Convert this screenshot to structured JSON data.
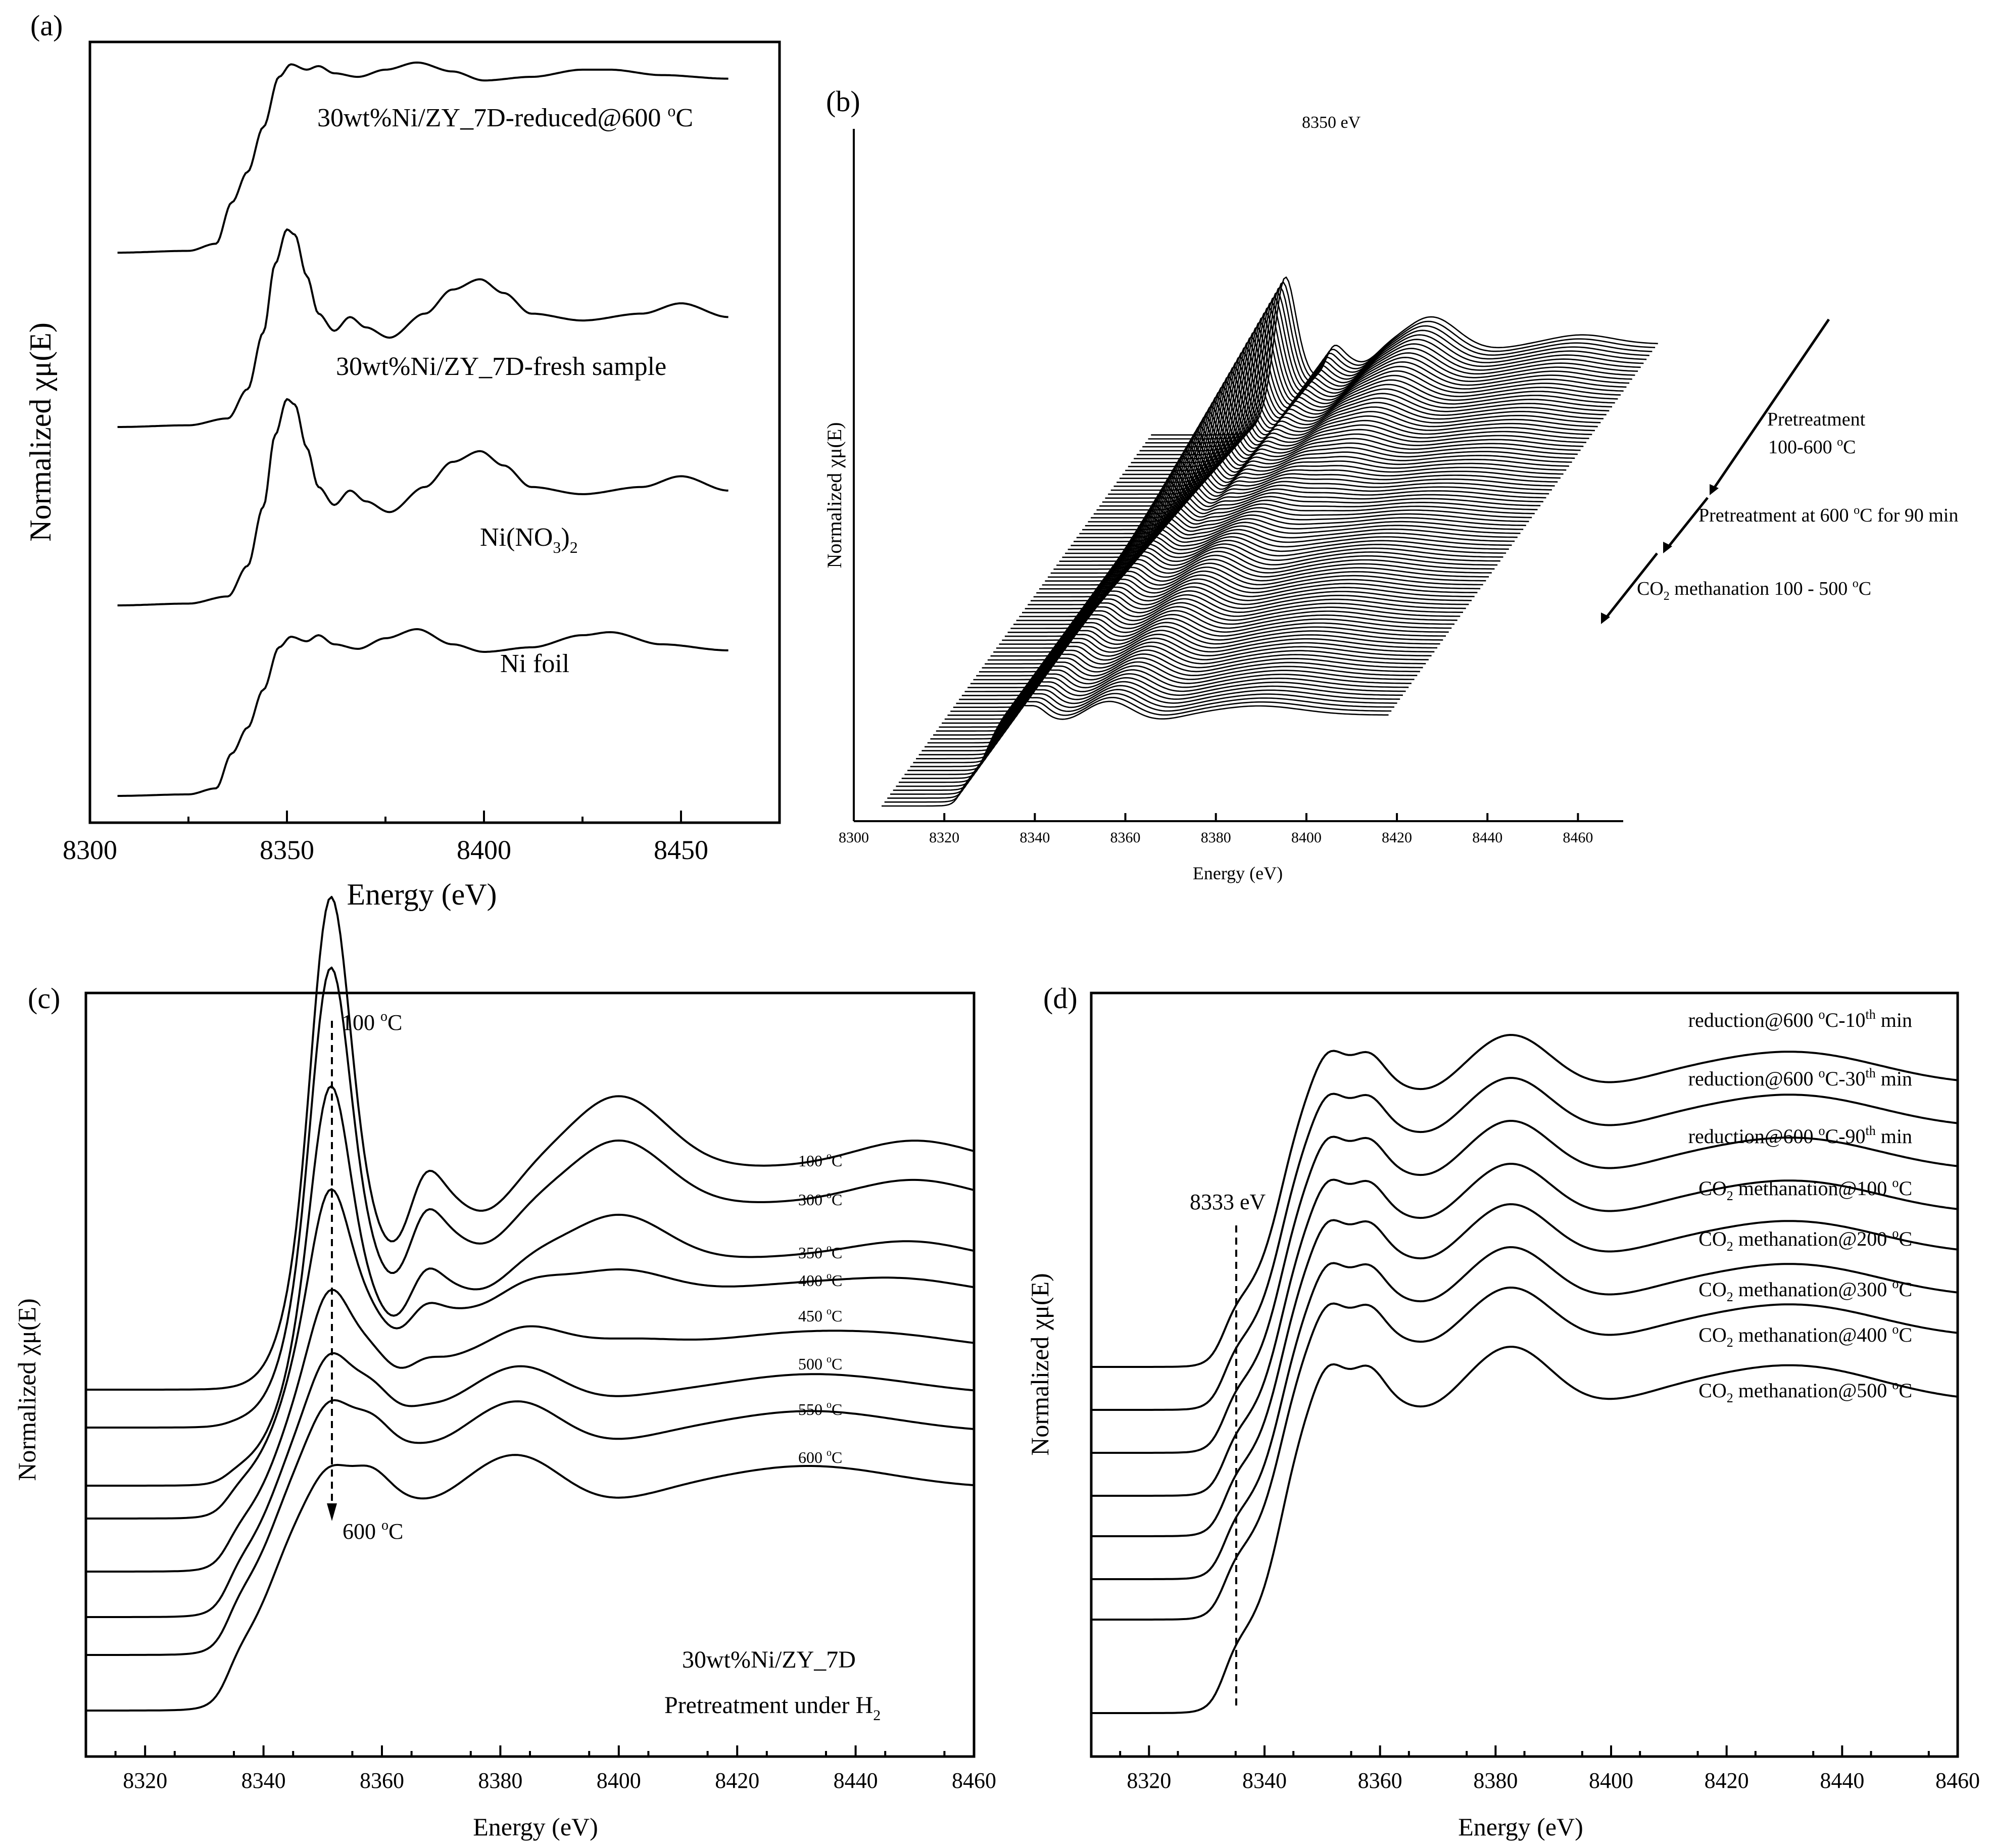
{
  "colors": {
    "ink": "#000000",
    "background": "#ffffff"
  },
  "chart_data": [
    {
      "panel": "(a)",
      "type": "line",
      "xlabel": "Energy (eV)",
      "ylabel": "Normalized χμ(E)",
      "xlim": [
        8300,
        8475
      ],
      "xticks": [
        8300,
        8350,
        8400,
        8450
      ],
      "series": [
        {
          "name": "30wt%Ni/ZY_7D-reduced@600 oC",
          "label_main": "30wt%Ni/ZY_7D-reduced@600 ",
          "label_sup": "o",
          "label_tail": "C",
          "x": [
            8307,
            8325,
            8332,
            8336,
            8340,
            8344,
            8348,
            8351,
            8355,
            8358,
            8362,
            8368,
            8375,
            8383,
            8392,
            8400,
            8412,
            8425,
            8432,
            8445,
            8462
          ],
          "y": [
            0.0,
            0.01,
            0.05,
            0.28,
            0.45,
            0.7,
            0.98,
            1.05,
            1.02,
            1.04,
            1.0,
            0.98,
            1.02,
            1.06,
            1.01,
            0.96,
            0.98,
            1.02,
            1.02,
            0.99,
            0.97
          ]
        },
        {
          "name": "30wt%Ni/ZY_7D-fresh sample",
          "x": [
            8307,
            8325,
            8335,
            8340,
            8344,
            8347,
            8350,
            8352,
            8355,
            8358,
            8362,
            8366,
            8370,
            8376,
            8385,
            8392,
            8399,
            8405,
            8412,
            8425,
            8440,
            8450,
            8462
          ],
          "y": [
            0.0,
            0.01,
            0.05,
            0.22,
            0.55,
            0.95,
            1.15,
            1.12,
            0.88,
            0.66,
            0.56,
            0.64,
            0.58,
            0.52,
            0.66,
            0.8,
            0.86,
            0.78,
            0.66,
            0.62,
            0.66,
            0.72,
            0.64
          ]
        },
        {
          "name": "Ni(NO3)2",
          "label_main": "Ni(NO",
          "label_sub": "3",
          "label_tail": ")",
          "label_sub2": "2",
          "x": [
            8307,
            8325,
            8335,
            8340,
            8344,
            8347,
            8350,
            8352,
            8355,
            8358,
            8362,
            8366,
            8370,
            8376,
            8385,
            8392,
            8399,
            8405,
            8412,
            8425,
            8440,
            8450,
            8462
          ],
          "y": [
            0.0,
            0.01,
            0.05,
            0.22,
            0.55,
            0.95,
            1.15,
            1.12,
            0.88,
            0.66,
            0.56,
            0.64,
            0.58,
            0.52,
            0.66,
            0.8,
            0.86,
            0.78,
            0.66,
            0.62,
            0.66,
            0.72,
            0.64
          ]
        },
        {
          "name": "Ni foil",
          "x": [
            8307,
            8325,
            8332,
            8336,
            8340,
            8344,
            8348,
            8351,
            8355,
            8358,
            8362,
            8368,
            8375,
            8383,
            8392,
            8400,
            8412,
            8425,
            8432,
            8445,
            8462
          ],
          "y": [
            0.0,
            0.01,
            0.05,
            0.28,
            0.45,
            0.7,
            0.98,
            1.05,
            1.02,
            1.06,
            1.0,
            0.97,
            1.04,
            1.1,
            1.0,
            0.95,
            0.98,
            1.06,
            1.08,
            1.0,
            0.96
          ]
        }
      ]
    },
    {
      "panel": "(b)",
      "type": "line",
      "xlabel": "Energy (eV)",
      "ylabel": "Normalized χμ(E)",
      "xlim": [
        8300,
        8470
      ],
      "xticks": [
        8300,
        8320,
        8340,
        8360,
        8380,
        8400,
        8420,
        8440,
        8460
      ],
      "peak_label": "8350 eV",
      "annotations": {
        "pretreatment_1": "Pretreatment",
        "pretreatment_2": "100-600 ",
        "pretreatment_2_sup": "o",
        "pretreatment_2_tail": "C",
        "hold_main": "Pretreatment at 600 ",
        "hold_sup": "o",
        "hold_tail": "C for 90 min",
        "methanation_co": "CO",
        "methanation_sub": "2",
        "methanation_tail": " methanation 100 - 500 ",
        "methanation_sup": "o",
        "methanation_end": "C"
      },
      "n_spectra": 95
    },
    {
      "panel": "(c)",
      "type": "line",
      "xlabel": "Energy (eV)",
      "ylabel": "Normalized χμ(E)",
      "xlim": [
        8310,
        8460
      ],
      "xticks": [
        8320,
        8340,
        8360,
        8380,
        8400,
        8420,
        8440,
        8460
      ],
      "sample_label": "30wt%Ni/ZY_7D",
      "condition_main": "Pretreatment under H",
      "condition_sub": "2",
      "arrow_top_main": "100 ",
      "arrow_top_sup": "o",
      "arrow_top_tail": "C",
      "arrow_bottom_main": "600 ",
      "arrow_bottom_sup": "o",
      "arrow_bottom_tail": "C",
      "series": [
        {
          "name": "100 oC",
          "main": "100 ",
          "sup": "o",
          "tail": "C",
          "white_line": 1.45,
          "oxide": 1.0
        },
        {
          "name": "300 oC",
          "main": "300 ",
          "sup": "o",
          "tail": "C",
          "white_line": 1.38,
          "oxide": 0.92
        },
        {
          "name": "350 oC",
          "main": "350 ",
          "sup": "o",
          "tail": "C",
          "white_line": 1.25,
          "oxide": 0.72
        },
        {
          "name": "400 oC",
          "main": "400 ",
          "sup": "o",
          "tail": "C",
          "white_line": 1.1,
          "oxide": 0.45
        },
        {
          "name": "450 oC",
          "main": "450 ",
          "sup": "o",
          "tail": "C",
          "white_line": 1.0,
          "oxide": 0.25
        },
        {
          "name": "500 oC",
          "main": "500 ",
          "sup": "o",
          "tail": "C",
          "white_line": 0.96,
          "oxide": 0.1
        },
        {
          "name": "550 oC",
          "main": "550 ",
          "sup": "o",
          "tail": "C",
          "white_line": 0.94,
          "oxide": 0.04
        },
        {
          "name": "600 oC",
          "main": "600 ",
          "sup": "o",
          "tail": "C",
          "white_line": 0.92,
          "oxide": 0.0
        }
      ]
    },
    {
      "panel": "(d)",
      "type": "line",
      "xlabel": "Energy (eV)",
      "ylabel": "Normalized χμ(E)",
      "xlim": [
        8310,
        8460
      ],
      "xticks": [
        8320,
        8340,
        8360,
        8380,
        8400,
        8420,
        8440,
        8460
      ],
      "edge_label": "8333 eV",
      "series": [
        {
          "name": "reduction@600 oC-10th min",
          "parts": [
            "reduction@600 ",
            "o",
            "C-10",
            "th",
            " min"
          ]
        },
        {
          "name": "reduction@600 oC-30th min",
          "parts": [
            "reduction@600 ",
            "o",
            "C-30",
            "th",
            " min"
          ]
        },
        {
          "name": "reduction@600 oC-90th min",
          "parts": [
            "reduction@600 ",
            "o",
            "C-90",
            "th",
            " min"
          ]
        },
        {
          "name": "CO2 methanation@100 oC",
          "parts": [
            "CO",
            "2",
            " methanation@100 ",
            "o",
            "C"
          ]
        },
        {
          "name": "CO2 methanation@200 oC",
          "parts": [
            "CO",
            "2",
            " methanation@200 ",
            "o",
            "C"
          ]
        },
        {
          "name": "CO2 methanation@300 oC",
          "parts": [
            "CO",
            "2",
            " methanation@300 ",
            "o",
            "C"
          ]
        },
        {
          "name": "CO2 methanation@400 oC",
          "parts": [
            "CO",
            "2",
            " methanation@400 ",
            "o",
            "C"
          ]
        },
        {
          "name": "CO2 methanation@500 oC",
          "parts": [
            "CO",
            "2",
            " methanation@500 ",
            "o",
            "C"
          ]
        }
      ]
    }
  ],
  "panels": {
    "a": "(a)",
    "b": "(b)",
    "c": "(c)",
    "d": "(d)"
  }
}
